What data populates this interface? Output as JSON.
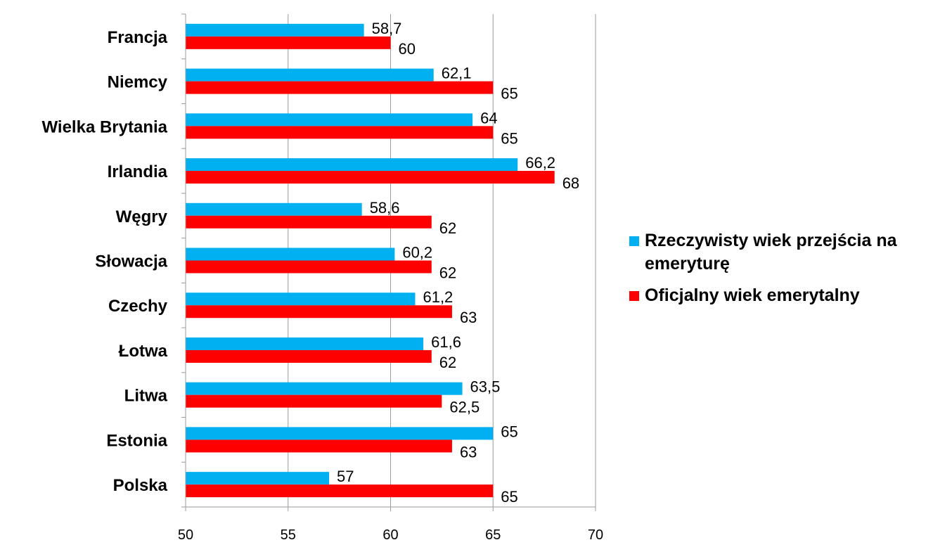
{
  "chart_data": {
    "type": "bar",
    "orientation": "horizontal",
    "categories": [
      "Francja",
      "Niemcy",
      "Wielka Brytania",
      "Irlandia",
      "Węgry",
      "Słowacja",
      "Czechy",
      "Łotwa",
      "Litwa",
      "Estonia",
      "Polska"
    ],
    "series": [
      {
        "name": "Rzeczywisty wiek przejścia na emeryturę",
        "color": "#00b0f0",
        "values": [
          58.7,
          62.1,
          64,
          66.2,
          58.6,
          60.2,
          61.2,
          61.6,
          63.5,
          65,
          57
        ],
        "labels": [
          "58,7",
          "62,1",
          "64",
          "66,2",
          "58,6",
          "60,2",
          "61,2",
          "61,6",
          "63,5",
          "65",
          "57"
        ]
      },
      {
        "name": "Oficjalny  wiek emerytalny",
        "color": "#ff0000",
        "values": [
          60,
          65,
          65,
          68,
          62,
          62,
          63,
          62,
          62.5,
          63,
          65
        ],
        "labels": [
          "60",
          "65",
          "65",
          "68",
          "62",
          "62",
          "63",
          "62",
          "62,5",
          "63",
          "65"
        ]
      }
    ],
    "xlim": [
      50,
      70
    ],
    "xticks": [
      "50",
      "55",
      "60",
      "65",
      "70"
    ],
    "grid": true,
    "legend_position": "right",
    "title": "",
    "xlabel": "",
    "ylabel": ""
  }
}
